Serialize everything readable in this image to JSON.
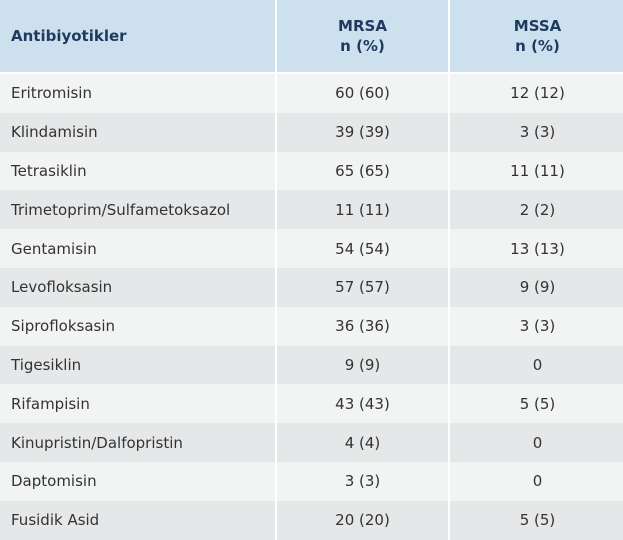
{
  "header": {
    "col1": "Antibiyotikler",
    "col2_line1": "MRSA",
    "col2_line2": "n (%)",
    "col3_line1": "MSSA",
    "col3_line2": "n (%)"
  },
  "rows": [
    {
      "name": "Eritromisin",
      "mrsa": "60 (60)",
      "mssa": "12 (12)"
    },
    {
      "name": "Klindamisin",
      "mrsa": "39 (39)",
      "mssa": "3 (3)"
    },
    {
      "name": "Tetrasiklin",
      "mrsa": "65 (65)",
      "mssa": "11 (11)"
    },
    {
      "name": "Trimetoprim/Sulfametoksazol",
      "mrsa": "11 (11)",
      "mssa": "2 (2)"
    },
    {
      "name": "Gentamisin",
      "mrsa": "54 (54)",
      "mssa": "13 (13)"
    },
    {
      "name": "Levofloksasin",
      "mrsa": "57 (57)",
      "mssa": "9 (9)"
    },
    {
      "name": "Siprofloksasin",
      "mrsa": "36 (36)",
      "mssa": "3 (3)"
    },
    {
      "name": "Tigesiklin",
      "mrsa": "9 (9)",
      "mssa": "0"
    },
    {
      "name": "Rifampisin",
      "mrsa": "43 (43)",
      "mssa": "5 (5)"
    },
    {
      "name": "Kinupristin/Dalfopristin",
      "mrsa": "4 (4)",
      "mssa": "0"
    },
    {
      "name": "Daptomisin",
      "mrsa": "3 (3)",
      "mssa": "0"
    },
    {
      "name": "Fusidik Asid",
      "mrsa": "20 (20)",
      "mssa": "5 (5)"
    }
  ],
  "colors": {
    "header_bg": "#cde0ee",
    "header_text": "#1f3a5f",
    "row_odd": "#f2f3f3",
    "row_even": "#e6e7e8"
  }
}
